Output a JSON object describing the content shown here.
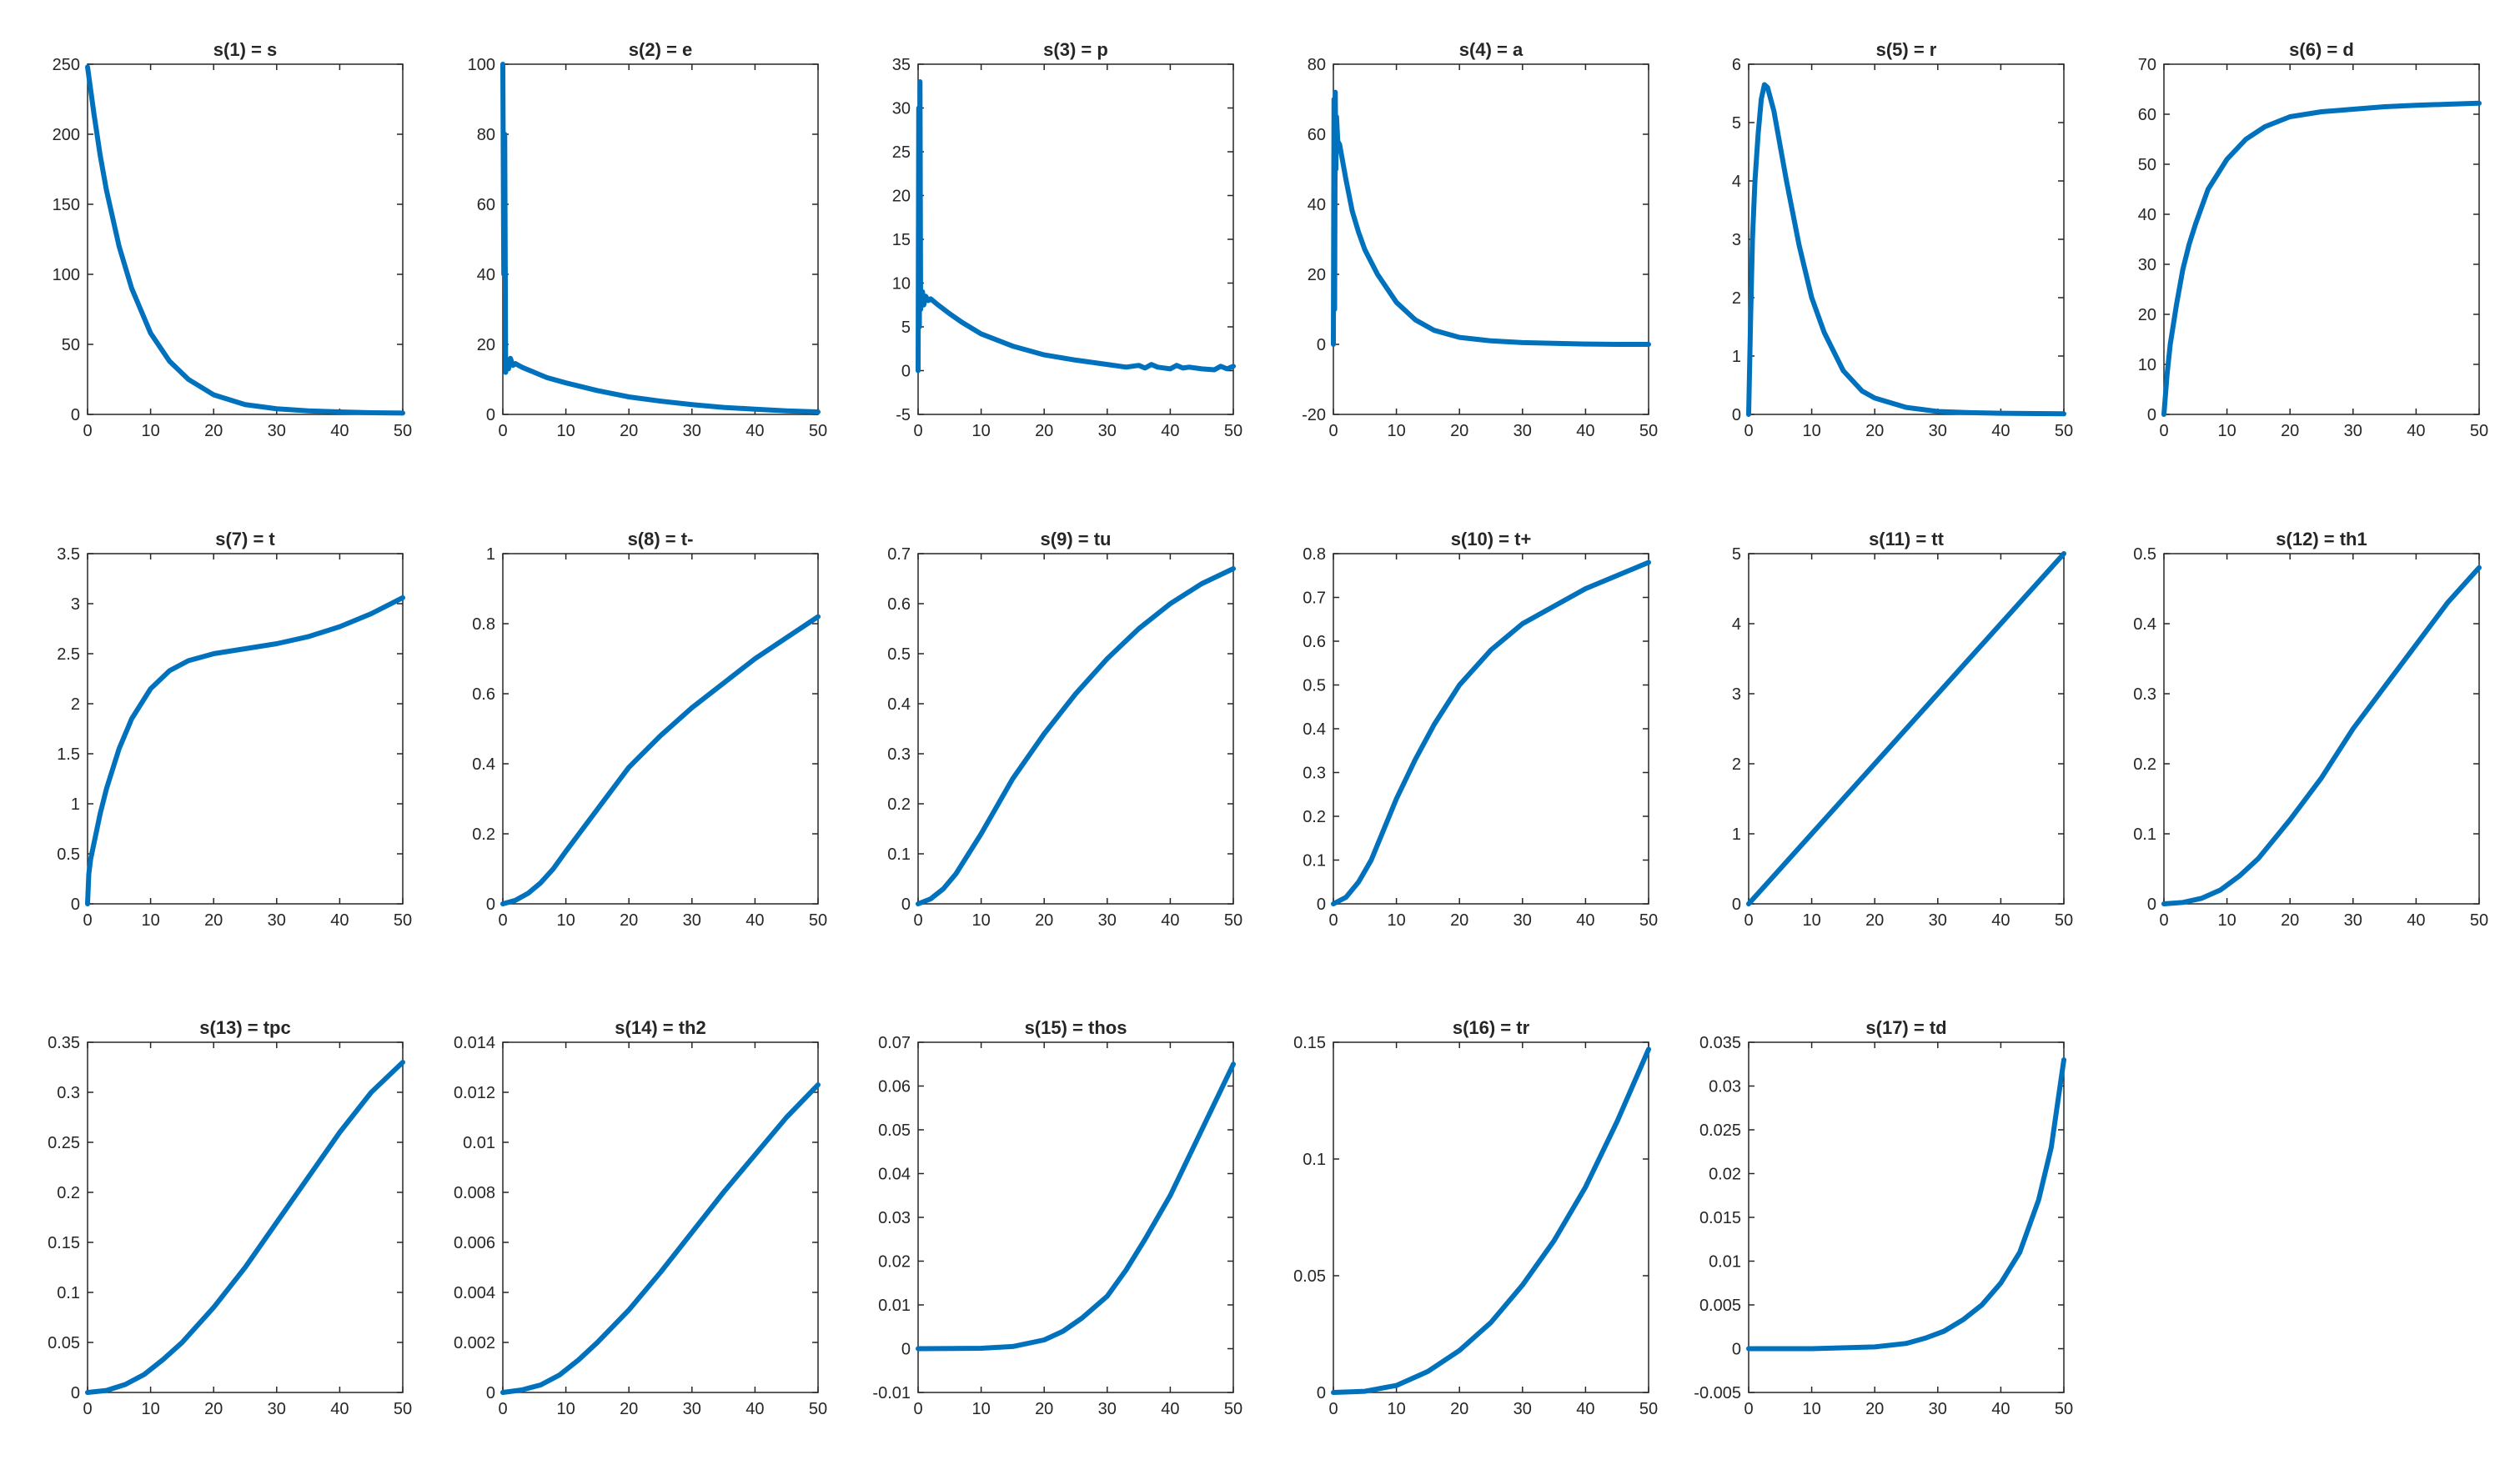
{
  "figure": {
    "line_color": "#0072bd",
    "background": "#ffffff",
    "axes_color": "#262626"
  },
  "chart_data": [
    {
      "type": "line",
      "title": "s(1) = s",
      "grid": false,
      "xlim": [
        0,
        50
      ],
      "ylim": [
        0,
        250
      ],
      "xticks": [
        0,
        10,
        20,
        30,
        40,
        50
      ],
      "yticks": [
        0,
        50,
        100,
        150,
        200,
        250
      ],
      "series": [
        {
          "x": [
            0,
            1,
            2,
            3,
            5,
            7,
            10,
            13,
            16,
            20,
            25,
            30,
            35,
            40,
            45,
            50
          ],
          "y": [
            248,
            215,
            185,
            160,
            120,
            90,
            58,
            38,
            25,
            14,
            7,
            4,
            2.5,
            1.8,
            1.2,
            1
          ]
        }
      ]
    },
    {
      "type": "line",
      "title": "s(2) = e",
      "grid": false,
      "xlim": [
        0,
        50
      ],
      "ylim": [
        0,
        100
      ],
      "xticks": [
        0,
        10,
        20,
        30,
        40,
        50
      ],
      "yticks": [
        0,
        20,
        40,
        60,
        80,
        100
      ],
      "series": [
        {
          "x": [
            0,
            0.15,
            0.3,
            0.45,
            0.6,
            0.9,
            1.2,
            1.6,
            2,
            3,
            5,
            7,
            10,
            15,
            20,
            25,
            30,
            35,
            40,
            45,
            50
          ],
          "y": [
            100,
            40,
            80,
            12,
            15,
            13,
            16,
            14,
            14.5,
            13.5,
            12,
            10.5,
            9,
            6.8,
            5,
            3.8,
            2.8,
            2,
            1.5,
            1,
            0.7
          ]
        }
      ]
    },
    {
      "type": "line",
      "title": "s(3) = p",
      "grid": false,
      "xlim": [
        0,
        50
      ],
      "ylim": [
        -5,
        35
      ],
      "xticks": [
        0,
        10,
        20,
        30,
        40,
        50
      ],
      "yticks": [
        -5,
        0,
        5,
        10,
        15,
        20,
        25,
        30,
        35
      ],
      "series": [
        {
          "x": [
            0,
            0.1,
            0.2,
            0.3,
            0.4,
            0.5,
            0.7,
            0.9,
            1.2,
            1.6,
            2,
            3,
            5,
            7,
            10,
            15,
            20,
            25,
            30,
            33,
            35,
            36,
            37,
            38,
            40,
            41,
            42,
            43,
            45,
            47,
            48,
            49,
            50
          ],
          "y": [
            0,
            30,
            5,
            33,
            7,
            8,
            9,
            7.5,
            8.5,
            8,
            8.2,
            7.6,
            6.5,
            5.5,
            4.2,
            2.8,
            1.8,
            1.2,
            0.7,
            0.4,
            0.6,
            0.3,
            0.7,
            0.4,
            0.2,
            0.6,
            0.3,
            0.4,
            0.2,
            0.1,
            0.5,
            0.2,
            0.5
          ]
        }
      ]
    },
    {
      "type": "line",
      "title": "s(4) = a",
      "grid": false,
      "xlim": [
        0,
        50
      ],
      "ylim": [
        -20,
        80
      ],
      "xticks": [
        0,
        10,
        20,
        30,
        40,
        50
      ],
      "yticks": [
        -20,
        0,
        20,
        40,
        60,
        80
      ],
      "series": [
        {
          "x": [
            0,
            0.1,
            0.2,
            0.3,
            0.4,
            0.5,
            0.7,
            1,
            1.5,
            2,
            3,
            4,
            5,
            7,
            10,
            13,
            16,
            20,
            25,
            30,
            35,
            40,
            45,
            50
          ],
          "y": [
            0,
            70,
            10,
            72,
            50,
            65,
            58,
            57,
            52,
            47,
            38,
            32,
            27,
            20,
            12,
            7,
            4,
            2,
            1,
            0.5,
            0.3,
            0.1,
            0,
            0
          ]
        }
      ]
    },
    {
      "type": "line",
      "title": "s(5) = r",
      "grid": false,
      "xlim": [
        0,
        50
      ],
      "ylim": [
        0,
        6
      ],
      "xticks": [
        0,
        10,
        20,
        30,
        40,
        50
      ],
      "yticks": [
        0,
        1,
        2,
        3,
        4,
        5,
        6
      ],
      "series": [
        {
          "x": [
            0,
            0.3,
            0.6,
            1,
            1.5,
            2,
            2.5,
            3,
            4,
            5,
            6,
            8,
            10,
            12,
            15,
            18,
            20,
            25,
            30,
            35,
            40,
            50
          ],
          "y": [
            0,
            1.6,
            3,
            4,
            4.8,
            5.4,
            5.65,
            5.6,
            5.2,
            4.6,
            4,
            2.9,
            2,
            1.4,
            0.75,
            0.4,
            0.28,
            0.12,
            0.05,
            0.03,
            0.02,
            0.01
          ]
        }
      ]
    },
    {
      "type": "line",
      "title": "s(6) = d",
      "grid": false,
      "xlim": [
        0,
        50
      ],
      "ylim": [
        0,
        70
      ],
      "xticks": [
        0,
        10,
        20,
        30,
        40,
        50
      ],
      "yticks": [
        0,
        10,
        20,
        30,
        40,
        50,
        60,
        70
      ],
      "series": [
        {
          "x": [
            0,
            0.5,
            1,
            2,
            3,
            4,
            5,
            7,
            10,
            13,
            16,
            20,
            25,
            30,
            35,
            40,
            45,
            50
          ],
          "y": [
            0,
            8,
            14,
            22,
            29,
            34,
            38,
            45,
            51,
            55,
            57.5,
            59.5,
            60.5,
            61,
            61.5,
            61.8,
            62,
            62.2
          ]
        }
      ]
    },
    {
      "type": "line",
      "title": "s(7) = t",
      "grid": false,
      "xlim": [
        0,
        50
      ],
      "ylim": [
        0,
        3.5
      ],
      "xticks": [
        0,
        10,
        20,
        30,
        40,
        50
      ],
      "yticks": [
        0,
        0.5,
        1,
        1.5,
        2,
        2.5,
        3,
        3.5
      ],
      "series": [
        {
          "x": [
            0,
            0.2,
            0.5,
            1,
            2,
            3,
            5,
            7,
            10,
            13,
            16,
            20,
            25,
            30,
            35,
            40,
            45,
            50
          ],
          "y": [
            0,
            0.3,
            0.45,
            0.6,
            0.9,
            1.15,
            1.55,
            1.85,
            2.15,
            2.33,
            2.43,
            2.5,
            2.55,
            2.6,
            2.67,
            2.77,
            2.9,
            3.06
          ]
        }
      ]
    },
    {
      "type": "line",
      "title": "s(8) = t-",
      "grid": false,
      "xlim": [
        0,
        50
      ],
      "ylim": [
        0,
        1
      ],
      "xticks": [
        0,
        10,
        20,
        30,
        40,
        50
      ],
      "yticks": [
        0,
        0.2,
        0.4,
        0.6,
        0.8,
        1
      ],
      "series": [
        {
          "x": [
            0,
            2,
            4,
            6,
            8,
            10,
            15,
            20,
            25,
            30,
            35,
            40,
            45,
            50
          ],
          "y": [
            0,
            0.01,
            0.03,
            0.06,
            0.1,
            0.15,
            0.27,
            0.39,
            0.48,
            0.56,
            0.63,
            0.7,
            0.76,
            0.82
          ]
        }
      ]
    },
    {
      "type": "line",
      "title": "s(9) = tu",
      "grid": false,
      "xlim": [
        0,
        50
      ],
      "ylim": [
        0,
        0.7
      ],
      "xticks": [
        0,
        10,
        20,
        30,
        40,
        50
      ],
      "yticks": [
        0,
        0.1,
        0.2,
        0.3,
        0.4,
        0.5,
        0.6,
        0.7
      ],
      "series": [
        {
          "x": [
            0,
            2,
            4,
            6,
            8,
            10,
            15,
            20,
            25,
            30,
            35,
            40,
            45,
            50
          ],
          "y": [
            0,
            0.01,
            0.03,
            0.06,
            0.1,
            0.14,
            0.25,
            0.34,
            0.42,
            0.49,
            0.55,
            0.6,
            0.64,
            0.67
          ]
        }
      ]
    },
    {
      "type": "line",
      "title": "s(10) = t+",
      "grid": false,
      "xlim": [
        0,
        50
      ],
      "ylim": [
        0,
        0.8
      ],
      "xticks": [
        0,
        10,
        20,
        30,
        40,
        50
      ],
      "yticks": [
        0,
        0.1,
        0.2,
        0.3,
        0.4,
        0.5,
        0.6,
        0.7,
        0.8
      ],
      "series": [
        {
          "x": [
            0,
            2,
            4,
            6,
            8,
            10,
            13,
            16,
            20,
            25,
            30,
            35,
            40,
            45,
            50
          ],
          "y": [
            0,
            0.015,
            0.05,
            0.1,
            0.17,
            0.24,
            0.33,
            0.41,
            0.5,
            0.58,
            0.64,
            0.68,
            0.72,
            0.75,
            0.78
          ]
        }
      ]
    },
    {
      "type": "line",
      "title": "s(11) = tt",
      "grid": false,
      "xlim": [
        0,
        50
      ],
      "ylim": [
        0,
        5
      ],
      "xticks": [
        0,
        10,
        20,
        30,
        40,
        50
      ],
      "yticks": [
        0,
        1,
        2,
        3,
        4,
        5
      ],
      "series": [
        {
          "x": [
            0,
            50
          ],
          "y": [
            0,
            5
          ]
        }
      ]
    },
    {
      "type": "line",
      "title": "s(12) = th1",
      "grid": false,
      "xlim": [
        0,
        50
      ],
      "ylim": [
        0,
        0.5
      ],
      "xticks": [
        0,
        10,
        20,
        30,
        40,
        50
      ],
      "yticks": [
        0,
        0.1,
        0.2,
        0.3,
        0.4,
        0.5
      ],
      "series": [
        {
          "x": [
            0,
            3,
            6,
            9,
            12,
            15,
            20,
            25,
            30,
            35,
            40,
            45,
            50
          ],
          "y": [
            0,
            0.002,
            0.008,
            0.02,
            0.04,
            0.065,
            0.12,
            0.18,
            0.25,
            0.31,
            0.37,
            0.43,
            0.48
          ]
        }
      ]
    },
    {
      "type": "line",
      "title": "s(13) = tpc",
      "grid": false,
      "xlim": [
        0,
        50
      ],
      "ylim": [
        0,
        0.35
      ],
      "xticks": [
        0,
        10,
        20,
        30,
        40,
        50
      ],
      "yticks": [
        0,
        0.05,
        0.1,
        0.15,
        0.2,
        0.25,
        0.3,
        0.35
      ],
      "series": [
        {
          "x": [
            0,
            3,
            6,
            9,
            12,
            15,
            20,
            25,
            30,
            35,
            40,
            45,
            50
          ],
          "y": [
            0,
            0.002,
            0.008,
            0.018,
            0.033,
            0.05,
            0.085,
            0.125,
            0.17,
            0.215,
            0.26,
            0.3,
            0.33
          ]
        }
      ]
    },
    {
      "type": "line",
      "title": "s(14) = th2",
      "grid": false,
      "xlim": [
        0,
        50
      ],
      "ylim": [
        0,
        0.014
      ],
      "xticks": [
        0,
        10,
        20,
        30,
        40,
        50
      ],
      "yticks": [
        0,
        0.002,
        0.004,
        0.006,
        0.008,
        0.01,
        0.012,
        0.014
      ],
      "series": [
        {
          "x": [
            0,
            3,
            6,
            9,
            12,
            15,
            20,
            25,
            30,
            35,
            40,
            45,
            50
          ],
          "y": [
            0,
            0.0001,
            0.0003,
            0.0007,
            0.0013,
            0.002,
            0.0033,
            0.0048,
            0.0064,
            0.008,
            0.0095,
            0.011,
            0.0123
          ]
        }
      ]
    },
    {
      "type": "line",
      "title": "s(15) = thos",
      "grid": false,
      "xlim": [
        0,
        50
      ],
      "ylim": [
        -0.01,
        0.07
      ],
      "xticks": [
        0,
        10,
        20,
        30,
        40,
        50
      ],
      "yticks": [
        -0.01,
        0,
        0.01,
        0.02,
        0.03,
        0.04,
        0.05,
        0.06,
        0.07
      ],
      "series": [
        {
          "x": [
            0,
            10,
            15,
            20,
            23,
            26,
            30,
            33,
            36,
            40,
            43,
            46,
            50
          ],
          "y": [
            0,
            0.0001,
            0.0005,
            0.002,
            0.004,
            0.007,
            0.012,
            0.018,
            0.025,
            0.035,
            0.044,
            0.053,
            0.065
          ]
        }
      ]
    },
    {
      "type": "line",
      "title": "s(16) = tr",
      "grid": false,
      "xlim": [
        0,
        50
      ],
      "ylim": [
        0,
        0.15
      ],
      "xticks": [
        0,
        10,
        20,
        30,
        40,
        50
      ],
      "yticks": [
        0,
        0.05,
        0.1,
        0.15
      ],
      "series": [
        {
          "x": [
            0,
            5,
            10,
            15,
            20,
            25,
            30,
            35,
            40,
            45,
            50
          ],
          "y": [
            0,
            0.0005,
            0.003,
            0.009,
            0.018,
            0.03,
            0.046,
            0.065,
            0.088,
            0.116,
            0.147
          ]
        }
      ]
    },
    {
      "type": "line",
      "title": "s(17) = td",
      "grid": false,
      "xlim": [
        0,
        50
      ],
      "ylim": [
        -0.005,
        0.035
      ],
      "xticks": [
        0,
        10,
        20,
        30,
        40,
        50
      ],
      "yticks": [
        -0.005,
        0,
        0.005,
        0.01,
        0.015,
        0.02,
        0.025,
        0.03,
        0.035
      ],
      "series": [
        {
          "x": [
            0,
            10,
            20,
            25,
            28,
            31,
            34,
            37,
            40,
            43,
            46,
            48,
            50
          ],
          "y": [
            0,
            0,
            0.0002,
            0.0006,
            0.0012,
            0.002,
            0.0033,
            0.005,
            0.0075,
            0.011,
            0.017,
            0.023,
            0.033
          ]
        }
      ]
    }
  ]
}
